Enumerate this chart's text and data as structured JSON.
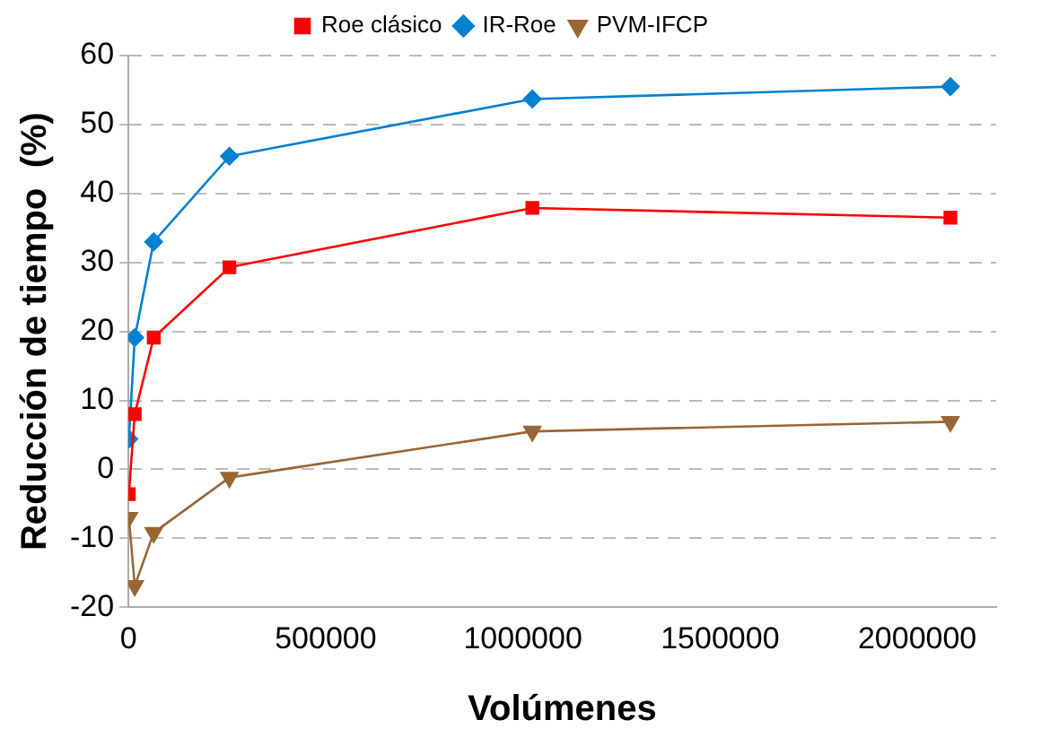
{
  "chart_data": {
    "type": "line",
    "xlabel": "Volúmenes",
    "ylabel": "Reducción de tiempo  (%)",
    "x": [
      1000,
      16000,
      64000,
      256000,
      1024000,
      2084000
    ],
    "series": [
      {
        "name": "Roe clásico",
        "color": "#ff0000",
        "marker": "square",
        "values": [
          -3.6,
          8,
          19.1,
          29.3,
          37.9,
          36.5
        ]
      },
      {
        "name": "IR-Roe",
        "color": "#0080d0",
        "marker": "diamond",
        "values": [
          4.4,
          19.1,
          33,
          45.4,
          53.7,
          55.5
        ]
      },
      {
        "name": "PVM-IFCP",
        "color": "#996633",
        "marker": "triangle",
        "values": [
          -7,
          -16.9,
          -9.2,
          -1.2,
          5.5,
          6.9
        ]
      }
    ],
    "xlim": [
      0,
      2200000
    ],
    "xticks": [
      0,
      500000,
      1000000,
      1500000,
      2000000
    ],
    "ylim": [
      -20,
      60
    ],
    "yticks": [
      -20,
      -10,
      0,
      10,
      20,
      30,
      40,
      50,
      60
    ],
    "grid": "y",
    "legend": "top",
    "line_style": "solid"
  }
}
